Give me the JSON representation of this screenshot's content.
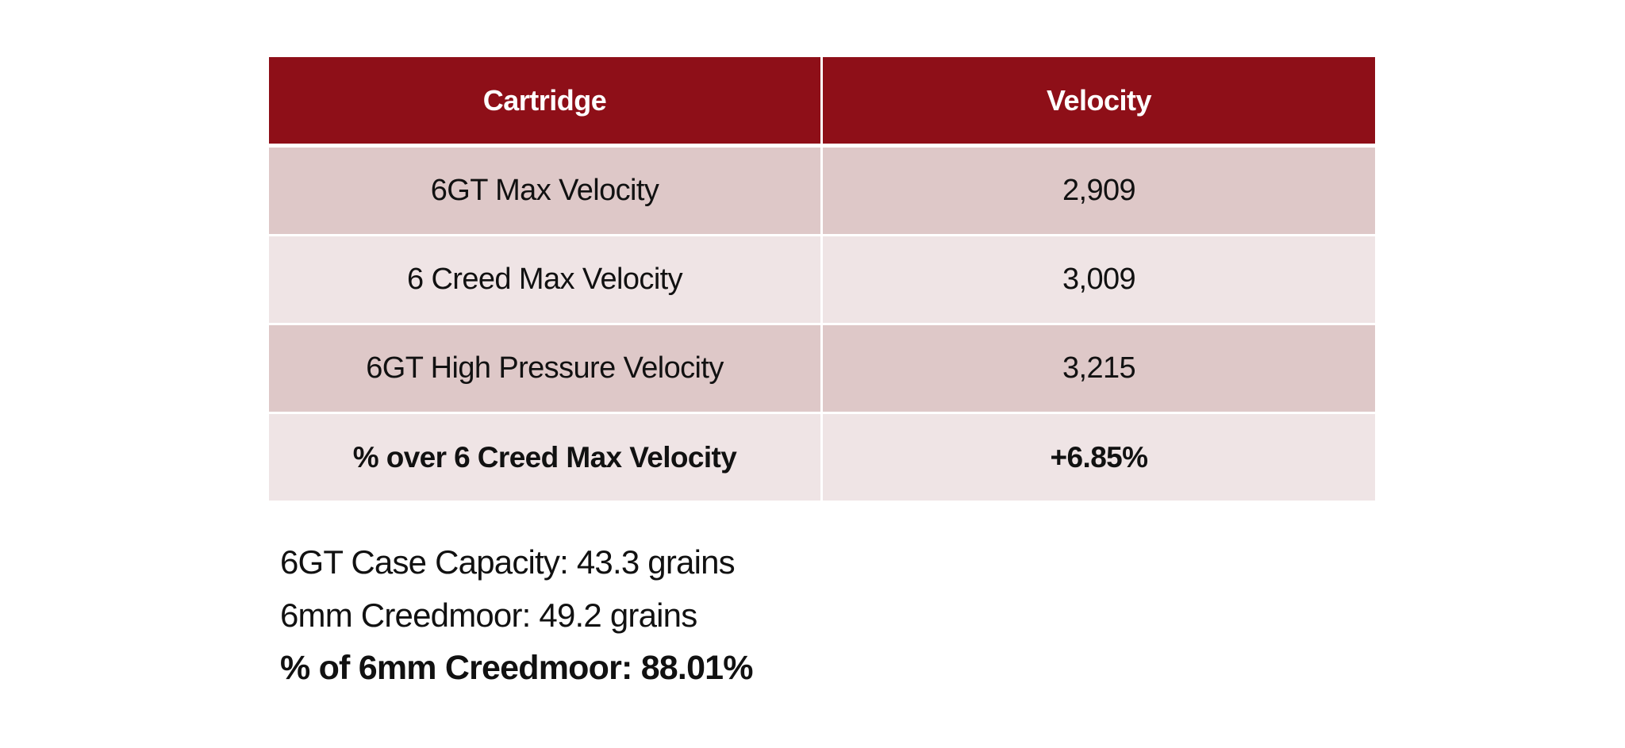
{
  "table": {
    "headers": {
      "cartridge": "Cartridge",
      "velocity": "Velocity"
    },
    "rows": [
      {
        "label": "6GT Max Velocity",
        "value": "2,909"
      },
      {
        "label": "6 Creed Max Velocity",
        "value": "3,009"
      },
      {
        "label": "6GT High Pressure Velocity",
        "value": "3,215"
      },
      {
        "label": "% over 6 Creed Max Velocity",
        "value": "+6.85%"
      }
    ]
  },
  "notes": {
    "case_capacity": "6GT Case Capacity: 43.3 grains",
    "creedmoor": "6mm Creedmoor: 49.2 grains",
    "percent": "% of 6mm Creedmoor: 88.01%"
  },
  "colors": {
    "header_bg": "#8e0f18",
    "row_dark": "#dec8c8",
    "row_light": "#efe4e5"
  }
}
